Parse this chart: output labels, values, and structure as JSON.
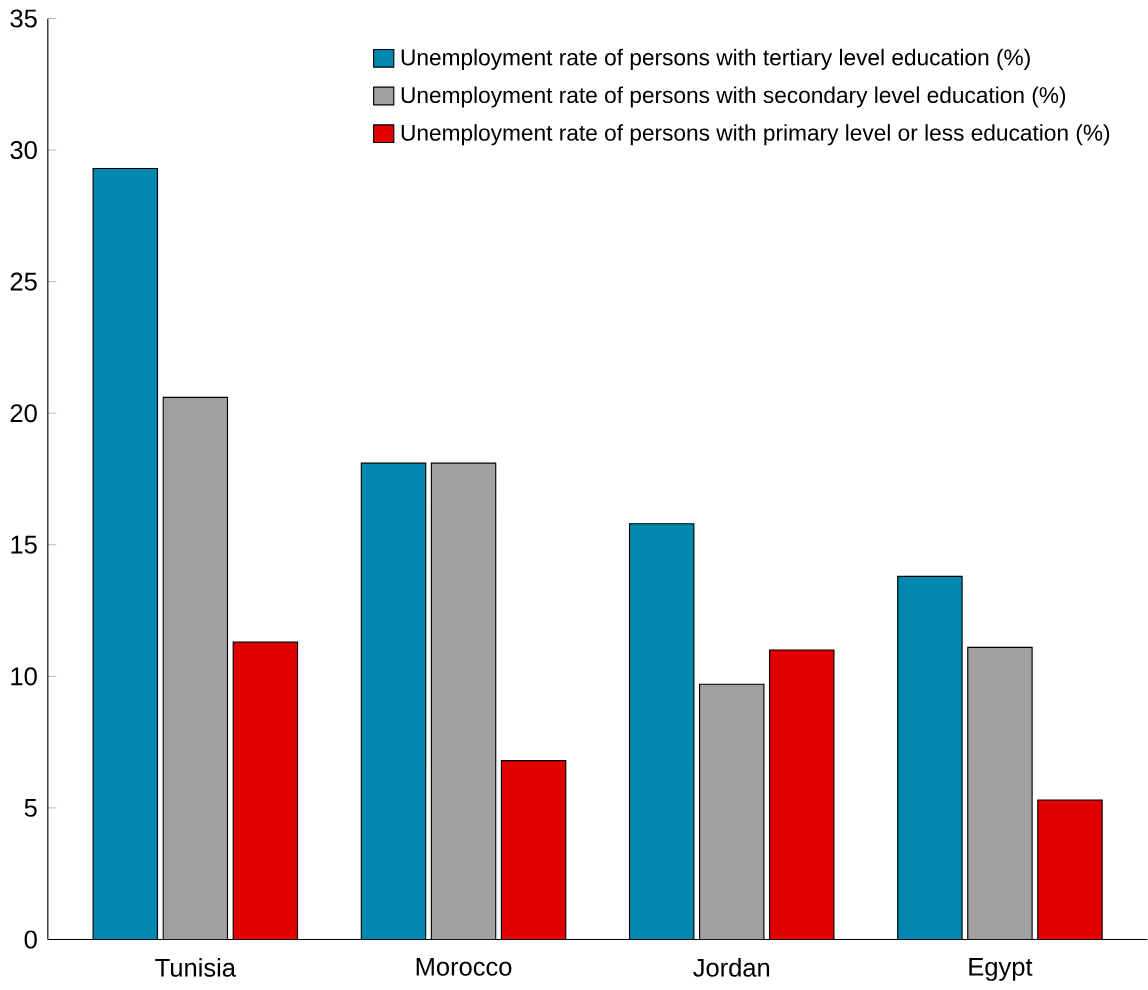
{
  "chart_data": {
    "type": "bar",
    "categories": [
      "Tunisia",
      "Morocco",
      "Jordan",
      "Egypt"
    ],
    "series": [
      {
        "name": "Unemployment rate of persons with tertiary level education (%)",
        "color": "#0088b0",
        "values": [
          29.3,
          18.1,
          15.8,
          13.8
        ]
      },
      {
        "name": "Unemployment rate of persons with secondary level education (%)",
        "color": "#a0a0a0",
        "values": [
          20.6,
          18.1,
          9.7,
          11.1
        ]
      },
      {
        "name": "Unemployment rate of persons with primary level or less education (%)",
        "color": "#e00000",
        "values": [
          11.3,
          6.8,
          11.0,
          5.3
        ]
      }
    ],
    "ylim": [
      0,
      35
    ],
    "yticks": [
      0,
      5,
      10,
      15,
      20,
      25,
      30,
      35
    ],
    "grid": false,
    "legend": "top right"
  }
}
